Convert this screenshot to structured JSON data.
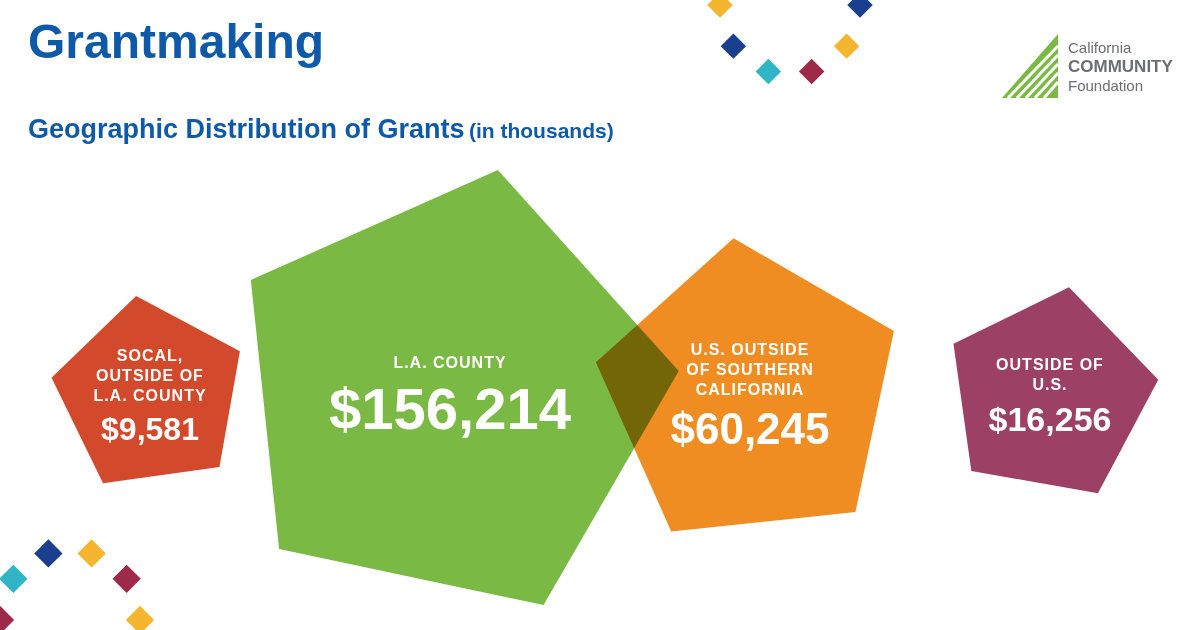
{
  "chart_data": {
    "type": "bubble",
    "title": "Grantmaking",
    "subtitle": "Geographic Distribution of Grants",
    "annotation": "(in thousands)",
    "categories": [
      "SOCAL, OUTSIDE OF L.A. COUNTY",
      "L.A. COUNTY",
      "U.S. OUTSIDE OF SOUTHERN CALIFORNIA",
      "OUTSIDE OF U.S."
    ],
    "values": [
      9581,
      156214,
      60245,
      16256
    ],
    "value_labels": [
      "$9,581",
      "$156,214",
      "$60,245",
      "$16,256"
    ],
    "colors": [
      "#d24a2b",
      "#7ab943",
      "#ef8d22",
      "#9c4066"
    ],
    "data_labels": true,
    "tick_labels": false
  },
  "logo": [
    "California",
    "COMMUNITY",
    "Foundation"
  ]
}
